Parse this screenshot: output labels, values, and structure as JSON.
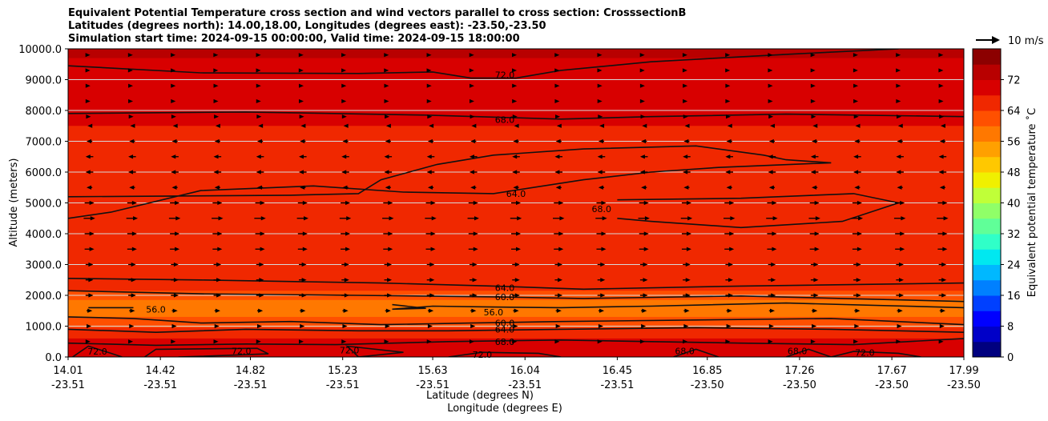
{
  "title_lines": [
    "Equivalent Potential Temperature cross section and wind vectors parallel to cross section: CrosssectionB",
    "Latitudes (degrees north): 14.00,18.00, Longitudes (degrees east): -23.50,-23.50",
    "Simulation start time: 2024-09-15 00:00:00, Valid time: 2024-09-15 18:00:00"
  ],
  "chart_data": {
    "type": "heatmap",
    "xlabel": "Latitude (degrees N)",
    "xlabel2": "Longitude (degrees E)",
    "ylabel": "Altitude (meters)",
    "ylim": [
      0,
      10000
    ],
    "xlim": [
      14.01,
      17.99
    ],
    "grid": "horizontal",
    "y_ticks": [
      {
        "value": 0,
        "label": "0.0"
      },
      {
        "value": 1000,
        "label": "1000.0"
      },
      {
        "value": 2000,
        "label": "2000.0"
      },
      {
        "value": 3000,
        "label": "3000.0"
      },
      {
        "value": 4000,
        "label": "4000.0"
      },
      {
        "value": 5000,
        "label": "5000.0"
      },
      {
        "value": 6000,
        "label": "6000.0"
      },
      {
        "value": 7000,
        "label": "7000.0"
      },
      {
        "value": 8000,
        "label": "8000.0"
      },
      {
        "value": 9000,
        "label": "9000.0"
      },
      {
        "value": 10000,
        "label": "10000.0"
      }
    ],
    "x_ticks": [
      {
        "value": 14.01,
        "lat": "14.01",
        "lon": "-23.51"
      },
      {
        "value": 14.42,
        "lat": "14.42",
        "lon": "-23.51"
      },
      {
        "value": 14.82,
        "lat": "14.82",
        "lon": "-23.51"
      },
      {
        "value": 15.23,
        "lat": "15.23",
        "lon": "-23.51"
      },
      {
        "value": 15.63,
        "lat": "15.63",
        "lon": "-23.51"
      },
      {
        "value": 16.04,
        "lat": "16.04",
        "lon": "-23.51"
      },
      {
        "value": 16.45,
        "lat": "16.45",
        "lon": "-23.51"
      },
      {
        "value": 16.85,
        "lat": "16.85",
        "lon": "-23.50"
      },
      {
        "value": 17.26,
        "lat": "17.26",
        "lon": "-23.50"
      },
      {
        "value": 17.67,
        "lat": "17.67",
        "lon": "-23.50"
      },
      {
        "value": 17.99,
        "lat": "17.99",
        "lon": "-23.50"
      }
    ],
    "colorbar": {
      "label": "Equivalent potential temperature ˚C",
      "range": [
        0,
        80
      ],
      "ticks": [
        "0",
        "8",
        "16",
        "24",
        "32",
        "40",
        "48",
        "56",
        "64",
        "72"
      ],
      "colors": [
        "#00007f",
        "#0000c8",
        "#0000ff",
        "#0040ff",
        "#0080ff",
        "#00b8ff",
        "#00e8f0",
        "#30ffc8",
        "#60ff98",
        "#90ff68",
        "#c0ff38",
        "#f0f000",
        "#ffc800",
        "#ffa000",
        "#ff7800",
        "#ff5000",
        "#f02800",
        "#d80000",
        "#b80000",
        "#8c0000"
      ]
    },
    "wind_reference": "10 m/s",
    "layers": [
      {
        "y_top": 10000,
        "y_bottom": 9700,
        "theta": 74
      },
      {
        "y_top": 9700,
        "y_bottom": 8300,
        "theta": 71
      },
      {
        "y_top": 8300,
        "y_bottom": 7500,
        "theta": 68
      },
      {
        "y_top": 7500,
        "y_bottom": 5200,
        "theta": 65
      },
      {
        "y_top": 5200,
        "y_bottom": 2700,
        "theta": 67
      },
      {
        "y_top": 2700,
        "y_bottom": 2150,
        "theta": 64
      },
      {
        "y_top": 2150,
        "y_bottom": 1850,
        "theta": 61
      },
      {
        "y_top": 1850,
        "y_bottom": 1300,
        "theta": 57
      },
      {
        "y_top": 1300,
        "y_bottom": 950,
        "theta": 60
      },
      {
        "y_top": 950,
        "y_bottom": 600,
        "theta": 65
      },
      {
        "y_top": 600,
        "y_bottom": 0,
        "theta": 70
      }
    ],
    "contours": [
      {
        "level": "72.0",
        "points": [
          [
            14.01,
            9450
          ],
          [
            14.6,
            9220
          ],
          [
            15.3,
            9200
          ],
          [
            15.63,
            9250
          ],
          [
            15.8,
            9050
          ],
          [
            16.0,
            9050
          ],
          [
            16.2,
            9300
          ],
          [
            16.6,
            9580
          ],
          [
            17.2,
            9820
          ],
          [
            17.7,
            10000
          ]
        ],
        "label": {
          "x": 15.95,
          "y": 9150,
          "text": "72.0"
        }
      },
      {
        "level": "68.0",
        "points": [
          [
            14.01,
            7900
          ],
          [
            14.8,
            7950
          ],
          [
            15.6,
            7850
          ],
          [
            16.2,
            7720
          ],
          [
            16.6,
            7800
          ],
          [
            17.2,
            7880
          ],
          [
            17.99,
            7800
          ]
        ],
        "label": {
          "x": 15.95,
          "y": 7700,
          "text": "68.0"
        }
      },
      {
        "level": "64.0",
        "points": [
          [
            14.01,
            5200
          ],
          [
            15.0,
            5250
          ],
          [
            15.3,
            5300
          ],
          [
            15.4,
            5750
          ],
          [
            15.65,
            6250
          ],
          [
            15.9,
            6550
          ],
          [
            16.3,
            6750
          ],
          [
            16.8,
            6850
          ],
          [
            17.1,
            6550
          ],
          [
            17.2,
            6400
          ],
          [
            17.4,
            6300
          ],
          [
            16.9,
            6150
          ],
          [
            16.6,
            6000
          ],
          [
            16.3,
            5750
          ],
          [
            15.9,
            5300
          ],
          [
            15.5,
            5350
          ],
          [
            15.1,
            5550
          ],
          [
            14.6,
            5400
          ],
          [
            14.2,
            4700
          ],
          [
            14.01,
            4500
          ]
        ],
        "label": {
          "x": 16.0,
          "y": 5300,
          "text": "64.0"
        }
      },
      {
        "level": "68.0",
        "points": [
          [
            16.45,
            5100
          ],
          [
            17.0,
            5150
          ],
          [
            17.5,
            5300
          ],
          [
            17.7,
            5000
          ],
          [
            17.45,
            4400
          ],
          [
            17.0,
            4200
          ],
          [
            16.6,
            4400
          ],
          [
            16.45,
            4500
          ]
        ],
        "label": {
          "x": 16.38,
          "y": 4800,
          "text": "68.0"
        }
      },
      {
        "level": "64.0",
        "points": [
          [
            14.01,
            2550
          ],
          [
            14.6,
            2500
          ],
          [
            15.4,
            2400
          ],
          [
            15.9,
            2300
          ],
          [
            16.3,
            2200
          ],
          [
            17.0,
            2300
          ],
          [
            17.99,
            2400
          ]
        ],
        "label": {
          "x": 15.95,
          "y": 2250,
          "text": "64.0"
        }
      },
      {
        "level": "60.0",
        "points": [
          [
            14.01,
            2150
          ],
          [
            14.6,
            2050
          ],
          [
            15.3,
            2000
          ],
          [
            15.9,
            1950
          ],
          [
            16.3,
            1900
          ],
          [
            17.0,
            1980
          ],
          [
            17.99,
            1800
          ]
        ],
        "label": {
          "x": 15.95,
          "y": 1950,
          "text": "60.0"
        }
      },
      {
        "level": "56.0",
        "points": [
          [
            14.1,
            1600
          ],
          [
            14.3,
            1600
          ]
        ],
        "label": {
          "x": 14.4,
          "y": 1550,
          "text": "56.0"
        }
      },
      {
        "level": "56.0",
        "points": [
          [
            15.45,
            1700
          ],
          [
            15.6,
            1580
          ],
          [
            15.45,
            1550
          ],
          [
            15.63,
            1650
          ],
          [
            15.9,
            1620
          ],
          [
            16.2,
            1600
          ],
          [
            16.6,
            1650
          ],
          [
            17.2,
            1750
          ],
          [
            17.99,
            1600
          ]
        ],
        "label": {
          "x": 15.9,
          "y": 1450,
          "text": "56.0"
        }
      },
      {
        "level": "60.0",
        "points": [
          [
            14.01,
            1300
          ],
          [
            14.3,
            1250
          ],
          [
            14.6,
            1100
          ],
          [
            15.0,
            1150
          ],
          [
            15.4,
            1050
          ],
          [
            15.8,
            1100
          ],
          [
            16.2,
            1150
          ],
          [
            16.8,
            1200
          ],
          [
            17.4,
            1250
          ],
          [
            17.99,
            1050
          ]
        ],
        "label": {
          "x": 15.95,
          "y": 1100,
          "text": "60.0"
        }
      },
      {
        "level": "64.0",
        "points": [
          [
            14.01,
            900
          ],
          [
            14.4,
            800
          ],
          [
            14.8,
            900
          ],
          [
            15.3,
            850
          ],
          [
            15.7,
            850
          ],
          [
            16.2,
            900
          ],
          [
            16.8,
            950
          ],
          [
            17.4,
            900
          ],
          [
            17.99,
            800
          ]
        ],
        "label": {
          "x": 15.95,
          "y": 900,
          "text": "64.0"
        }
      },
      {
        "level": "68.0",
        "points": [
          [
            14.01,
            450
          ],
          [
            14.4,
            380
          ],
          [
            14.8,
            420
          ],
          [
            15.2,
            400
          ],
          [
            15.7,
            500
          ],
          [
            16.2,
            550
          ],
          [
            16.6,
            500
          ],
          [
            17.0,
            450
          ],
          [
            17.5,
            400
          ],
          [
            17.99,
            600
          ]
        ],
        "label": {
          "x": 15.95,
          "y": 500,
          "text": "68.0"
        }
      },
      {
        "level": "72.0",
        "points": [
          [
            14.03,
            0
          ],
          [
            14.1,
            350
          ],
          [
            14.2,
            120
          ],
          [
            14.25,
            0
          ]
        ],
        "label": {
          "x": 14.14,
          "y": 180,
          "text": "72.0"
        }
      },
      {
        "level": "72.0",
        "points": [
          [
            14.35,
            0
          ],
          [
            14.4,
            250
          ],
          [
            14.85,
            280
          ],
          [
            14.9,
            100
          ],
          [
            14.6,
            20
          ],
          [
            14.5,
            0
          ]
        ],
        "label": {
          "x": 14.78,
          "y": 200,
          "text": "72.0"
        }
      },
      {
        "level": "72.0",
        "points": [
          [
            15.3,
            0
          ],
          [
            15.25,
            350
          ],
          [
            15.5,
            150
          ],
          [
            15.3,
            0
          ]
        ],
        "label": {
          "x": 15.26,
          "y": 220,
          "text": "72.0"
        }
      },
      {
        "level": "72.0",
        "points": [
          [
            15.7,
            0
          ],
          [
            15.85,
            150
          ],
          [
            16.1,
            120
          ],
          [
            16.2,
            0
          ]
        ],
        "label": {
          "x": 15.85,
          "y": 80,
          "text": "72.0"
        }
      },
      {
        "level": "68.0",
        "points": [
          [
            16.7,
            0
          ],
          [
            16.8,
            250
          ],
          [
            16.9,
            0
          ]
        ],
        "label": {
          "x": 16.75,
          "y": 200,
          "text": "68.0"
        }
      },
      {
        "level": "68.0",
        "points": [
          [
            17.2,
            0
          ],
          [
            17.3,
            250
          ],
          [
            17.4,
            0
          ]
        ],
        "label": {
          "x": 17.25,
          "y": 200,
          "text": "68.0"
        }
      },
      {
        "level": "72.0",
        "points": [
          [
            17.4,
            0
          ],
          [
            17.5,
            180
          ],
          [
            17.7,
            120
          ],
          [
            17.8,
            0
          ]
        ],
        "label": {
          "x": 17.55,
          "y": 140,
          "text": "72.0"
        }
      }
    ],
    "wind_rows": [
      {
        "y": 9800,
        "u": 0.5
      },
      {
        "y": 9300,
        "u": 0.8
      },
      {
        "y": 8800,
        "u": 1.0
      },
      {
        "y": 8300,
        "u": 1.0
      },
      {
        "y": 7800,
        "u": 1.5
      },
      {
        "y": 7500,
        "u": -2
      },
      {
        "y": 7000,
        "u": -3
      },
      {
        "y": 6500,
        "u": -4
      },
      {
        "y": 6000,
        "u": -4
      },
      {
        "y": 5500,
        "u": -3
      },
      {
        "y": 5000,
        "u": 5
      },
      {
        "y": 4500,
        "u": 6
      },
      {
        "y": 4000,
        "u": 5
      },
      {
        "y": 3500,
        "u": 5
      },
      {
        "y": 3000,
        "u": 4
      },
      {
        "y": 2500,
        "u": 4
      },
      {
        "y": 2000,
        "u": 4
      },
      {
        "y": 1500,
        "u": 3
      },
      {
        "y": 1000,
        "u": 2
      },
      {
        "y": 500,
        "u": 1
      }
    ]
  }
}
